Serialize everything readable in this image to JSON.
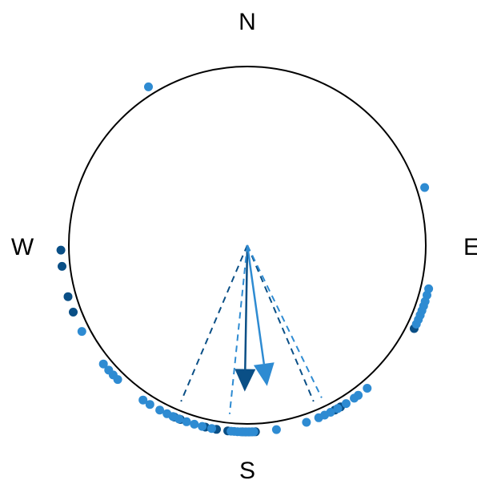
{
  "chart_data": {
    "type": "scatter",
    "subtype": "circular",
    "title": "",
    "compass_labels": {
      "north": "N",
      "east": "E",
      "south": "S",
      "west": "W"
    },
    "colors": {
      "dark": "#0a4f86",
      "light": "#2e8bd2",
      "circle": "#000000"
    },
    "series": [
      {
        "color_key": "dark",
        "points_deg": [
          268.5,
          263.5,
          254.0,
          249.0,
          203.0,
          201.0,
          193.0,
          189.5,
          186.0,
          181.5,
          180.5,
          179.5,
          178.5,
          177.5,
          150.0,
          152.0,
          116.5,
          112.0
        ],
        "mean_direction_deg": 181.0,
        "mean_resultant_length": 0.7,
        "ci_deg": [
          157.0,
          203.0
        ]
      },
      {
        "color_key": "light",
        "points_deg": [
          328.0,
          72.0,
          115.0,
          113.5,
          112.0,
          110.5,
          109.0,
          107.5,
          105.5,
          103.5,
          140.0,
          143.5,
          145.0,
          148.0,
          151.0,
          153.5,
          155.5,
          157.5,
          161.5,
          171.0,
          178.0,
          179.0,
          180.0,
          181.0,
          182.0,
          183.0,
          184.0,
          185.0,
          191.0,
          194.0,
          196.5,
          199.0,
          201.5,
          203.5,
          205.5,
          208.0,
          211.5,
          214.0,
          224.0,
          226.0,
          228.0,
          230.5,
          242.5
        ],
        "mean_direction_deg": 172.0,
        "mean_resultant_length": 0.68,
        "ci_deg": [
          154.0,
          186.0
        ]
      }
    ]
  }
}
